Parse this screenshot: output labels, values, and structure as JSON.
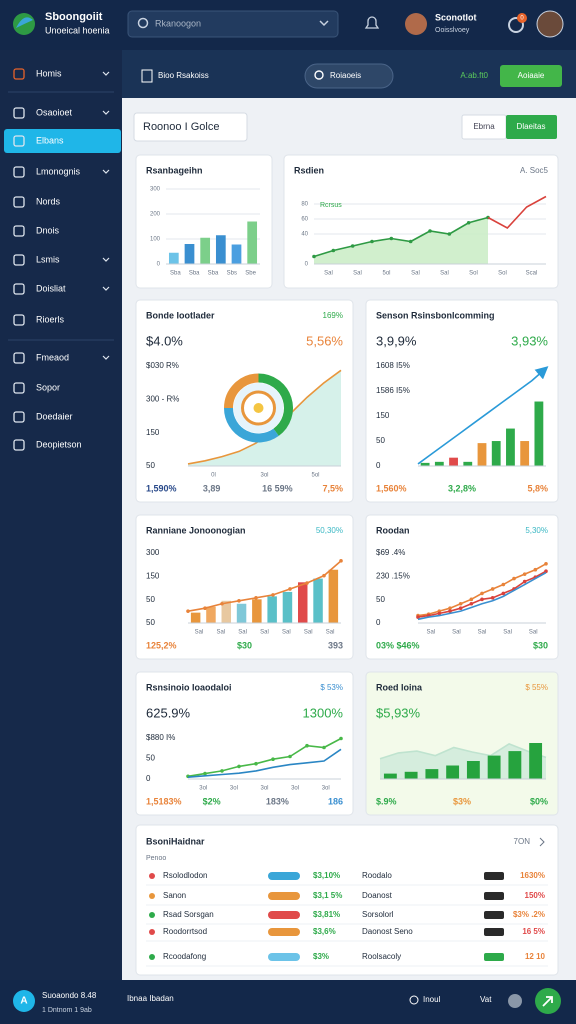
{
  "header": {
    "brand_title": "Sboongoiit",
    "brand_subtitle": "Unoeical hoenia",
    "search": "Rkanoogon",
    "user_name": "Sconotlot",
    "user_role": "Ooisslvoey",
    "badge": "0"
  },
  "sidebar": {
    "active": 2,
    "items": [
      "Homis",
      "Osaoioet",
      "Elbans",
      "Lmonognis",
      "Nords",
      "Dnois",
      "Lsmis",
      "Doisliat",
      "Rioerls",
      "Fmeaod",
      "Sopor",
      "Doedaier",
      "Deopietson"
    ]
  },
  "subheader": {
    "breadcrumb": "Bioo Rsakoiss",
    "filter": "Roiaoeis",
    "status": "A:ab.ft0",
    "action": "Aoiaaie"
  },
  "toolbar": {
    "title": "Roonoo I Golce",
    "buttons": [
      "Ebrna",
      "Dlaeitas"
    ]
  },
  "cards": [
    {
      "title": "Rsanbageihn",
      "x_labels": [
        "Sba",
        "Sba",
        "Sba",
        "Sbs",
        "Sbe"
      ],
      "chart": {
        "type": "bar",
        "ylim": [
          0,
          300
        ],
        "yticks": [
          0,
          100,
          200,
          300
        ],
        "bars": {
          "values": [
            45,
            80,
            105,
            115,
            78,
            170
          ],
          "colors": [
            "#6cc3e8",
            "#3a8fd0",
            "#7ccf8a",
            "#3a8fd0",
            "#4b9fe0",
            "#7ccf8a"
          ]
        }
      }
    },
    {
      "title": "Rsdien",
      "tag": "A. Soc5",
      "tag_color": "#6b7686",
      "note": "Rcrsus",
      "x_labels": [
        "Sal",
        "Sal",
        "5ol",
        "Sal",
        "Sal",
        "Sol",
        "Sol",
        "Scal"
      ],
      "chart": {
        "type": "line",
        "ylim": [
          0,
          100
        ],
        "yticks": [
          0,
          40,
          60,
          80
        ],
        "series": [
          {
            "color": "#2e9a44",
            "area": true,
            "area_color": "#c9ecc4",
            "dots": true,
            "values": [
              10,
              18,
              24,
              30,
              34,
              30,
              44,
              40,
              55,
              62,
              null,
              null,
              null
            ]
          },
          {
            "color": "#d9423c",
            "values": [
              null,
              null,
              null,
              null,
              null,
              null,
              null,
              null,
              null,
              62,
              48,
              76,
              90
            ]
          }
        ]
      }
    },
    {
      "title": "Bonde Iootlader",
      "tag": "169%",
      "tag_color": "#2eaa4a",
      "headline": [
        {
          "text": "$4.0%",
          "color": "#1e2a3a"
        },
        {
          "text": "5,56%",
          "color": "#e8833a"
        }
      ],
      "side_labels": [
        "$030 R%",
        "300 - R%",
        "150",
        "50"
      ],
      "x_labels": [
        "0l",
        "3ol",
        "5ol"
      ],
      "footer": [
        "1,590%",
        "3,89",
        "16 59%",
        "7,5%"
      ],
      "footer_colors": [
        "#2a4a8a",
        "#6b7686",
        "#6b7686",
        "#e8833a"
      ],
      "chart": {
        "type": "donut_area",
        "ylim": [
          0,
          100
        ],
        "series": [
          {
            "color": "#e8963c",
            "area": true,
            "area_color": "#cfeee6",
            "values": [
              2,
              5,
              9,
              14,
              22,
              34,
              50,
              66,
              80,
              92
            ]
          }
        ],
        "donut": {
          "values": [
            40,
            35,
            25
          ],
          "colors": [
            "#2eaa4a",
            "#3aa6d8",
            "#e8963c"
          ]
        }
      }
    },
    {
      "title": "Senson Rsinsbonlcomming",
      "headline": [
        {
          "text": "3,9,9%",
          "color": "#1e2a3a"
        },
        {
          "text": "3,93%",
          "color": "#2eaa4a"
        }
      ],
      "side_labels": [
        "1608 I5%",
        "1586 I5%",
        "150",
        "50",
        "0"
      ],
      "footer": [
        "1,560%",
        "3,2,8%",
        "5,8%"
      ],
      "footer_colors": [
        "#e8833a",
        "#2eaa4a",
        "#e8833a"
      ],
      "chart": {
        "type": "bar_line",
        "ylim": [
          0,
          100
        ],
        "bars": {
          "values": [
            3,
            4,
            8,
            4,
            22,
            24,
            36,
            24,
            62
          ],
          "colors": [
            "#2eaa4a",
            "#2eaa4a",
            "#e04a4a",
            "#2eaa4a",
            "#e8963c",
            "#2eaa4a",
            "#2eaa4a",
            "#e8963c",
            "#2eaa4a"
          ]
        },
        "series": [
          {
            "color": "#2a9ad8",
            "arrow": true,
            "values": [
              2,
              12,
              22,
              32,
              42,
              52,
              62,
              72,
              82,
              94
            ]
          }
        ]
      }
    },
    {
      "title": "Ranniane Jonoonogian",
      "tag": "50,30%",
      "tag_color": "#3bb8c4",
      "side_labels": [
        "300",
        "150",
        "50",
        "50"
      ],
      "x_labels": [
        "Sal",
        "Sal",
        "Sal",
        "Sal",
        "Sal",
        "Sal",
        "Sal"
      ],
      "footer": [
        "125,2%",
        "$30",
        "393"
      ],
      "footer_colors": [
        "#e8833a",
        "#2eaa4a",
        "#6b7686"
      ],
      "chart": {
        "type": "bar_line",
        "ylim": [
          0,
          100
        ],
        "bars": {
          "values": [
            14,
            22,
            30,
            26,
            32,
            36,
            42,
            55,
            60,
            72
          ],
          "colors": [
            "#e8963c",
            "#f0a860",
            "#e8c8a0",
            "#7fc8d8",
            "#e8963c",
            "#5ac0c8",
            "#5ac0c8",
            "#e04a4a",
            "#5ac0c8",
            "#e8963c"
          ]
        },
        "series": [
          {
            "color": "#e8833a",
            "dots": true,
            "values": [
              16,
              20,
              26,
              30,
              34,
              38,
              46,
              54,
              64,
              84
            ]
          }
        ]
      }
    },
    {
      "title": "Roodan",
      "tag": "5,30%",
      "tag_color": "#3bb8c4",
      "side_labels": [
        "$69 .4%",
        "230 .15%",
        "50",
        "0"
      ],
      "x_labels": [
        "Sal",
        "Sal",
        "Sal",
        "Sal",
        "Sal"
      ],
      "footer": [
        "03% $46%",
        "$30"
      ],
      "footer_colors": [
        "#2eaa4a",
        "#2eaa4a"
      ],
      "chart": {
        "type": "line",
        "ylim": [
          0,
          100
        ],
        "series": [
          {
            "color": "#e8833a",
            "dots": true,
            "values": [
              10,
              12,
              16,
              20,
              26,
              32,
              40,
              46,
              52,
              60,
              66,
              72,
              80
            ]
          },
          {
            "color": "#d9423c",
            "dots": true,
            "values": [
              8,
              10,
              13,
              16,
              20,
              26,
              32,
              34,
              40,
              46,
              56,
              62,
              70
            ]
          },
          {
            "color": "#3a8fd0",
            "values": [
              5,
              8,
              10,
              13,
              16,
              21,
              26,
              30,
              36,
              44,
              52,
              60,
              68
            ]
          }
        ]
      }
    },
    {
      "title": "Rsnsinoio Ioaodaloi",
      "tag": "$ 53%",
      "tag_color": "#3a8fd0",
      "headline": [
        {
          "text": "625.9%",
          "color": "#1e2a3a"
        },
        {
          "text": "1300%",
          "color": "#2eaa4a"
        }
      ],
      "side_labels": [
        "$880 I%",
        "50",
        "0"
      ],
      "x_labels": [
        "3ol",
        "3ol",
        "3ol",
        "3ol",
        "3ol"
      ],
      "footer": [
        "1,5183%",
        "$2%",
        "183%",
        "186"
      ],
      "footer_colors": [
        "#e8833a",
        "#2eaa4a",
        "#6b7686",
        "#3a8fd0"
      ],
      "chart": {
        "type": "line",
        "ylim": [
          0,
          100
        ],
        "series": [
          {
            "color": "#48b848",
            "dots": true,
            "values": [
              6,
              12,
              18,
              28,
              34,
              44,
              50,
              74,
              70,
              90
            ]
          },
          {
            "color": "#2a86c4",
            "values": [
              4,
              7,
              10,
              13,
              18,
              26,
              32,
              36,
              40,
              66
            ]
          }
        ]
      }
    },
    {
      "title": "Roed Ioina",
      "tag": "$ 55%",
      "tag_color": "#e8963c",
      "bg": "#f3faea",
      "headline": [
        {
          "text": "$5,93%",
          "color": "#2eaa4a"
        }
      ],
      "footer": [
        "$.9%",
        "$3%",
        "$0%"
      ],
      "footer_colors": [
        "#2eaa4a",
        "#e8963c",
        "#2eaa4a"
      ],
      "chart": {
        "type": "area_bar",
        "ylim": [
          0,
          100
        ],
        "series": [
          {
            "color": "#bfe3cf",
            "area": true,
            "area_color": "#cfeadb",
            "values": [
              45,
              58,
              62,
              52,
              70,
              60,
              52,
              78,
              62,
              48
            ]
          }
        ],
        "bars": {
          "values": [
            12,
            16,
            22,
            30,
            40,
            52,
            62,
            80
          ]
        },
        "bar_color": "#26a33e"
      }
    }
  ],
  "table": {
    "title": "BsoniHaidnar",
    "subtitle": "Penoo",
    "link": "7ON",
    "rows": [
      {
        "name": "Rsolodlodon",
        "value": "$3,10%",
        "name2": "Roodalo",
        "value2": "1630%",
        "dot": "#e04a4a",
        "pill": "#3aa6d8"
      },
      {
        "name": "Sanon",
        "value": "$3,1 5%",
        "name2": "Doanost",
        "value2": "150%",
        "dot": "#e8963c",
        "pill": "#e8963c"
      },
      {
        "name": "Rsad Sorsgan",
        "value": "$3,81%",
        "name2": "Sorsolorl",
        "value2": "$3% .2%",
        "dot": "#2eaa4a",
        "pill": "#e04a4a"
      },
      {
        "name": "Roodorrtsod",
        "value": "$3,6%",
        "name2": "Daonost Seno",
        "value2": "16 5%",
        "dot": "#e04a4a",
        "pill": "#e8963c"
      },
      {
        "name": "Rcoodafong",
        "value": "$3%",
        "name2": "Roolsacoly",
        "value2": "12 10",
        "dot": "#2eaa4a",
        "pill": "#6cc3e8"
      }
    ]
  },
  "footer": {
    "avatar": "A",
    "user": "Suoaondo 8.48",
    "detail": "1 Dntnom 1 9ab",
    "center": "Ibnaa Ibadan",
    "link1": "Inoul",
    "link2": "Vat"
  }
}
